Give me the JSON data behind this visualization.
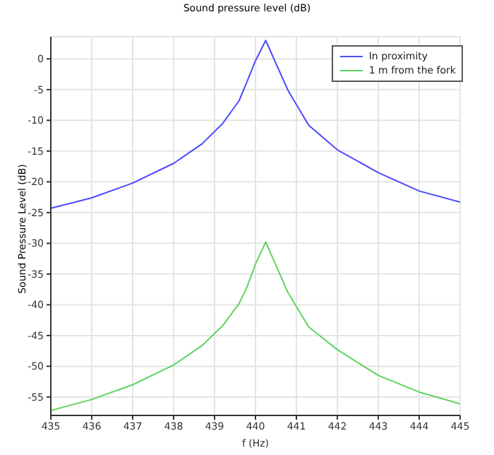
{
  "chart_data": {
    "type": "line",
    "title": "Sound pressure level (dB)",
    "xlabel": "f (Hz)",
    "ylabel": "Sound Pressure Level (dB)",
    "x": [
      435,
      436,
      437,
      438,
      438.7,
      439.2,
      439.6,
      439.8,
      440,
      440.25,
      440.8,
      441.3,
      442,
      443,
      444,
      445
    ],
    "series": [
      {
        "name": "In proximity",
        "color": "#4a4aff",
        "values": [
          -24.3,
          -22.6,
          -20.2,
          -17,
          -13.8,
          -10.5,
          -6.8,
          -3.6,
          -0.3,
          3,
          -5.2,
          -10.8,
          -14.8,
          -18.5,
          -21.5,
          -23.3
        ]
      },
      {
        "name": "1 m from the fork",
        "color": "#5fd35f",
        "values": [
          -57.2,
          -55.4,
          -53,
          -49.8,
          -46.6,
          -43.4,
          -39.8,
          -37,
          -33.4,
          -29.8,
          -38.1,
          -43.6,
          -47.3,
          -51.5,
          -54.2,
          -56.1
        ]
      }
    ],
    "xlim": [
      435,
      445
    ],
    "xticks": [
      435,
      436,
      437,
      438,
      439,
      440,
      441,
      442,
      443,
      444,
      445
    ],
    "ylim": [
      -58,
      3.6
    ],
    "yticks": [
      -55,
      -50,
      -45,
      -40,
      -35,
      -30,
      -25,
      -20,
      -15,
      -10,
      -5,
      0
    ],
    "grid": true,
    "legend": "top right",
    "marker": "none",
    "line_style": "solid"
  }
}
